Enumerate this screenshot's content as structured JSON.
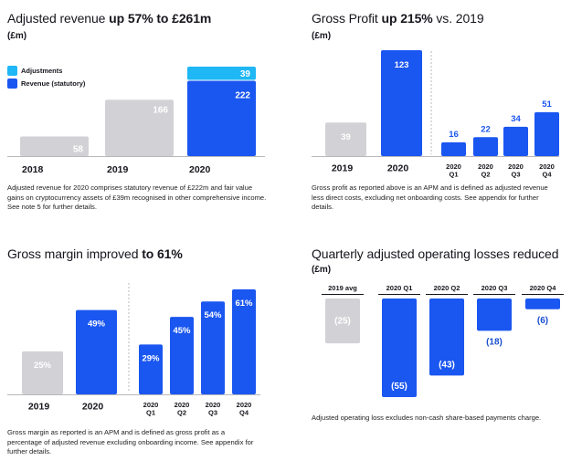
{
  "colors": {
    "blue": "#1a56f0",
    "light_blue": "#1fb7f5",
    "grey": "#d2d2d6",
    "axis": "#b8b8bc",
    "dark": "#16161d",
    "white": "#ffffff",
    "neg_label": "#1a4fd0"
  },
  "p1": {
    "title_pre": "Adjusted revenue ",
    "title_bold": "up 57% to £261m",
    "unit": "(£m)",
    "legend": [
      "Adjustments",
      "Revenue (statutory)"
    ],
    "note": "Adjusted revenue for 2020 comprises statutory revenue of £222m and fair value gains on cryptocurrency assets of £39m recognised in other comprehensive income. See note 5 for further details."
  },
  "p2": {
    "title_pre": "Gross Profit ",
    "title_bold": "up 215%",
    "title_post": " vs. 2019",
    "unit": "(£m)",
    "note": "Gross profit as reported above is an APM and is defined as adjusted revenue less direct costs, excluding net onboarding costs. See appendix for further details."
  },
  "p3": {
    "title_pre": "Gross margin improved ",
    "title_bold": "to 61%",
    "note": "Gross margin as reported is an APM and is defined as gross profit as a percentage of adjusted revenue excluding onboarding income. See appendix for further details."
  },
  "p4": {
    "title": "Quarterly adjusted operating losses reduced",
    "unit": "(£m)",
    "note": "Adjusted operating loss excludes non-cash share-based payments charge."
  },
  "chart_data": [
    {
      "type": "bar",
      "title": "Adjusted revenue up 57% to £261m",
      "unit": "(£m)",
      "categories": [
        "2018",
        "2019",
        "2020"
      ],
      "series": [
        {
          "name": "Revenue (statutory)",
          "values": [
            58,
            166,
            222
          ]
        },
        {
          "name": "Adjustments",
          "values": [
            0,
            0,
            39
          ]
        }
      ],
      "labels": [
        "58",
        "166",
        "222",
        "39"
      ],
      "stacked": true,
      "legend": "top-left"
    },
    {
      "type": "bar",
      "title": "Gross Profit up 215% vs. 2019",
      "unit": "(£m)",
      "categories": [
        "2019",
        "2020",
        "2020\nQ1",
        "2020\nQ2",
        "2020\nQ3",
        "2020\nQ4"
      ],
      "values": [
        39,
        123,
        16,
        22,
        34,
        51
      ],
      "labels": [
        "39",
        "123",
        "16",
        "22",
        "34",
        "51"
      ]
    },
    {
      "type": "bar",
      "title": "Gross margin improved to 61%",
      "categories": [
        "2019",
        "2020",
        "2020\nQ1",
        "2020\nQ2",
        "2020\nQ3",
        "2020\nQ4"
      ],
      "values": [
        25,
        49,
        29,
        45,
        54,
        61
      ],
      "labels": [
        "25%",
        "49%",
        "29%",
        "45%",
        "54%",
        "61%"
      ]
    },
    {
      "type": "bar",
      "title": "Quarterly adjusted operating losses reduced",
      "unit": "(£m)",
      "categories": [
        "2019 avg",
        "2020 Q1",
        "2020 Q2",
        "2020 Q3",
        "2020 Q4"
      ],
      "values": [
        -25,
        -55,
        -43,
        -18,
        -6
      ],
      "labels": [
        "(25)",
        "(55)",
        "(43)",
        "(18)",
        "(6)"
      ]
    }
  ]
}
